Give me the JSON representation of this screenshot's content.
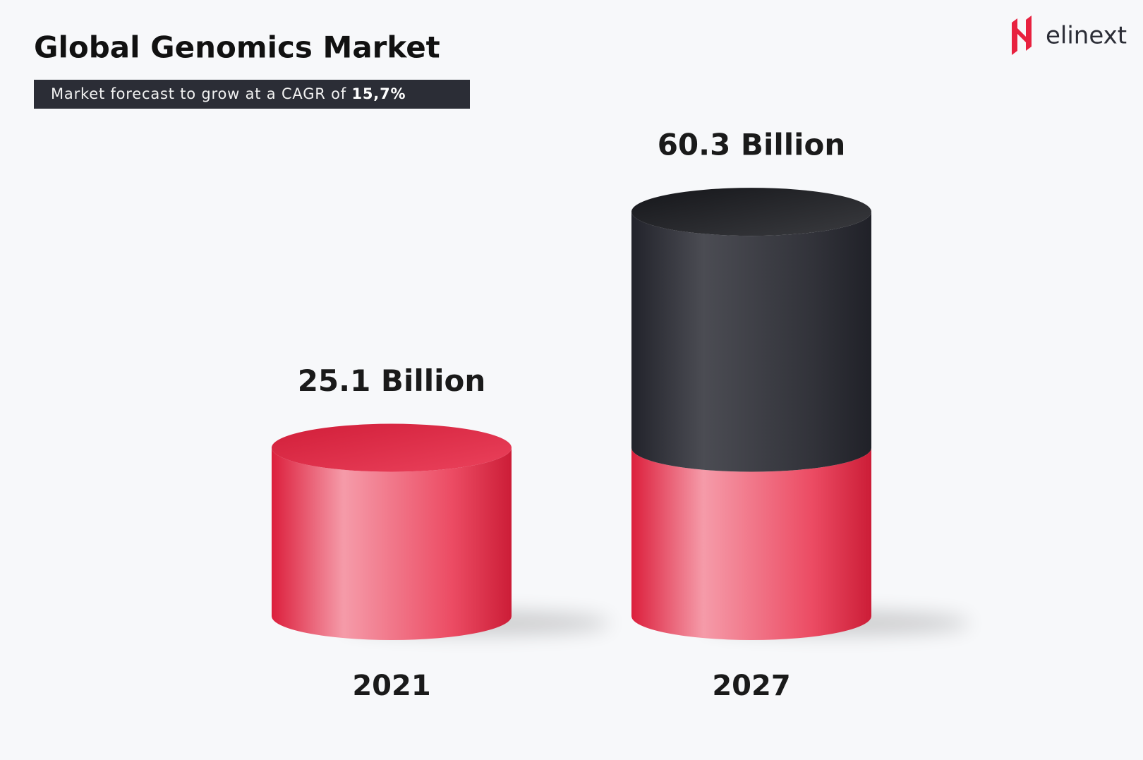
{
  "chart_data": {
    "type": "cylinder",
    "title": "Global Genomics Market",
    "subtitle": "Market forecast to grow at a CAGR of",
    "cagr_label": "15,7%",
    "brand": "elinext",
    "categories": [
      "2021",
      "2027"
    ],
    "values": [
      25.1,
      60.3
    ],
    "value_labels": [
      "25.1 Billion",
      "60.3 Billion"
    ],
    "color": "#e8213f",
    "growth_color": "#24252d"
  }
}
